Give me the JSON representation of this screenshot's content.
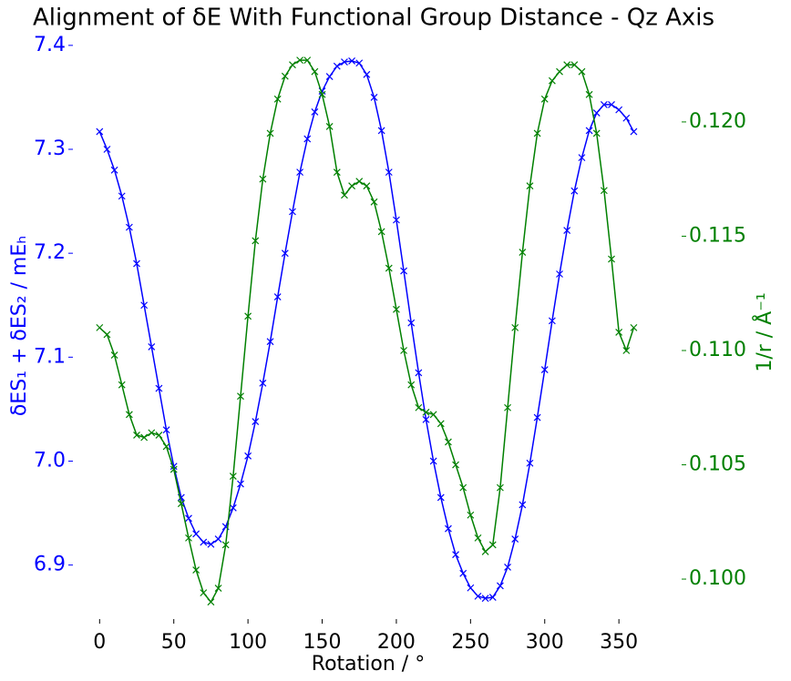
{
  "chart_data": {
    "type": "line",
    "title": "Alignment of δE With Functional Group Distance - Qz Axis",
    "x_label": "Rotation / °",
    "y_label": "δES₁ + δES₂ / mEₕ",
    "y2_label": "1/r / Å⁻¹",
    "x": [
      0,
      5,
      10,
      15,
      20,
      25,
      30,
      35,
      40,
      45,
      50,
      55,
      60,
      65,
      70,
      75,
      80,
      85,
      90,
      95,
      100,
      105,
      110,
      115,
      120,
      125,
      130,
      135,
      140,
      145,
      150,
      155,
      160,
      165,
      170,
      175,
      180,
      185,
      190,
      195,
      200,
      205,
      210,
      215,
      220,
      225,
      230,
      235,
      240,
      245,
      250,
      255,
      260,
      265,
      270,
      275,
      280,
      285,
      290,
      295,
      300,
      305,
      310,
      315,
      320,
      325,
      330,
      335,
      340,
      345,
      350,
      355,
      360
    ],
    "series": [
      {
        "name": "δE",
        "color": "#0000ff",
        "axis": "y",
        "values": [
          7.317,
          7.3,
          7.28,
          7.255,
          7.225,
          7.19,
          7.15,
          7.11,
          7.07,
          7.03,
          6.995,
          6.965,
          6.945,
          6.93,
          6.922,
          6.92,
          6.925,
          6.937,
          6.955,
          6.978,
          7.005,
          7.038,
          7.075,
          7.115,
          7.158,
          7.2,
          7.24,
          7.278,
          7.31,
          7.336,
          7.356,
          7.37,
          7.38,
          7.384,
          7.385,
          7.383,
          7.372,
          7.35,
          7.318,
          7.278,
          7.232,
          7.183,
          7.133,
          7.085,
          7.04,
          7.0,
          6.965,
          6.935,
          6.91,
          6.892,
          6.878,
          6.87,
          6.868,
          6.869,
          6.88,
          6.898,
          6.925,
          6.958,
          6.998,
          7.042,
          7.088,
          7.135,
          7.18,
          7.222,
          7.26,
          7.292,
          7.318,
          7.335,
          7.343,
          7.343,
          7.338,
          7.33,
          7.317
        ]
      },
      {
        "name": "1/r",
        "color": "#008000",
        "axis": "y2",
        "values": [
          0.111,
          0.1107,
          0.1098,
          0.1085,
          0.1072,
          0.1063,
          0.1062,
          0.1064,
          0.1063,
          0.1058,
          0.1048,
          0.1033,
          0.1018,
          0.1004,
          0.0994,
          0.099,
          0.0996,
          0.1015,
          0.1045,
          0.108,
          0.1115,
          0.1148,
          0.1175,
          0.1195,
          0.121,
          0.122,
          0.1225,
          0.1227,
          0.1227,
          0.1222,
          0.1212,
          0.1198,
          0.1178,
          0.1168,
          0.1172,
          0.1174,
          0.1172,
          0.1165,
          0.1152,
          0.1136,
          0.1118,
          0.11,
          0.1085,
          0.1075,
          0.1073,
          0.1072,
          0.1068,
          0.106,
          0.105,
          0.104,
          0.1028,
          0.1018,
          0.1012,
          0.1015,
          0.104,
          0.1075,
          0.111,
          0.1143,
          0.1172,
          0.1195,
          0.121,
          0.1218,
          0.1222,
          0.1225,
          0.1225,
          0.1222,
          0.1212,
          0.1195,
          0.117,
          0.114,
          0.1108,
          0.11,
          0.111
        ]
      }
    ],
    "xlim": [
      -18,
      380
    ],
    "xticks": [
      0,
      50,
      100,
      150,
      200,
      250,
      300,
      350
    ],
    "ylim": [
      6.848,
      7.413
    ],
    "yticks": [
      6.9,
      {
        "value": 7,
        "label": "7.0"
      },
      7.1,
      7.2,
      7.3,
      7.4
    ],
    "y2lim": [
      0.09825,
      0.12394
    ],
    "y2ticks": [
      {
        "value": 0.1,
        "label": "0.100"
      },
      0.105,
      {
        "value": 0.11,
        "label": "0.110"
      },
      0.115,
      {
        "value": 0.12,
        "label": "0.120"
      }
    ],
    "marker": "x",
    "grid": false
  }
}
